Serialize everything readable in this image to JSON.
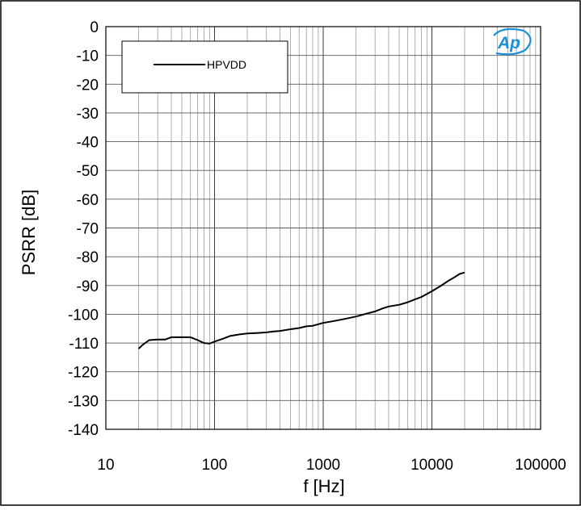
{
  "chart_data": {
    "type": "line",
    "xlabel": "f [Hz]",
    "ylabel": "PSRR [dB]",
    "xscale": "log",
    "xlim": [
      10,
      100000
    ],
    "ylim": [
      -140,
      0
    ],
    "x_ticks": [
      10,
      100,
      1000,
      10000,
      100000
    ],
    "x_tick_labels": [
      "10",
      "100",
      "1000",
      "10000",
      "100000"
    ],
    "y_ticks": [
      0,
      -10,
      -20,
      -30,
      -40,
      -50,
      -60,
      -70,
      -80,
      -90,
      -100,
      -110,
      -120,
      -130,
      -140
    ],
    "grid": true,
    "legend_position": "top-left",
    "logo_text": "Ap",
    "line_color": "#000000",
    "logo_color": "#1b8fd8",
    "series": [
      {
        "name": "HPVDD",
        "points": [
          [
            20,
            -112
          ],
          [
            22,
            -110.5
          ],
          [
            25,
            -109
          ],
          [
            30,
            -108.8
          ],
          [
            35,
            -108.8
          ],
          [
            40,
            -108
          ],
          [
            50,
            -108
          ],
          [
            60,
            -108
          ],
          [
            70,
            -109
          ],
          [
            80,
            -110
          ],
          [
            90,
            -110.2
          ],
          [
            100,
            -109.5
          ],
          [
            120,
            -108.5
          ],
          [
            140,
            -107.5
          ],
          [
            170,
            -107
          ],
          [
            200,
            -106.7
          ],
          [
            250,
            -106.5
          ],
          [
            300,
            -106.3
          ],
          [
            350,
            -106
          ],
          [
            400,
            -105.8
          ],
          [
            500,
            -105.2
          ],
          [
            600,
            -104.8
          ],
          [
            700,
            -104.2
          ],
          [
            800,
            -104
          ],
          [
            1000,
            -103
          ],
          [
            1200,
            -102.5
          ],
          [
            1500,
            -101.8
          ],
          [
            2000,
            -100.8
          ],
          [
            2500,
            -99.8
          ],
          [
            3000,
            -99
          ],
          [
            3500,
            -98
          ],
          [
            4000,
            -97.3
          ],
          [
            5000,
            -96.7
          ],
          [
            6000,
            -95.8
          ],
          [
            7000,
            -94.8
          ],
          [
            8000,
            -94
          ],
          [
            10000,
            -92
          ],
          [
            12000,
            -90.2
          ],
          [
            14000,
            -88.5
          ],
          [
            16000,
            -87.2
          ],
          [
            18000,
            -86
          ],
          [
            20000,
            -85.5
          ]
        ]
      }
    ]
  }
}
